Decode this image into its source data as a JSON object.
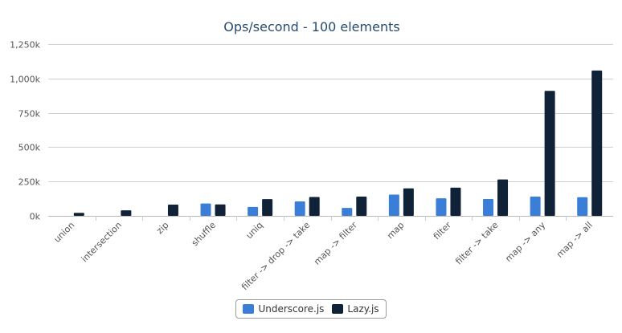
{
  "chart_data": {
    "type": "bar",
    "title": "Ops/second - 100 elements",
    "xlabel": "",
    "ylabel": "",
    "ylim": [
      0,
      1250000
    ],
    "yticks": [
      0,
      250000,
      500000,
      750000,
      1000000,
      1250000
    ],
    "ytick_labels": [
      "0k",
      "250k",
      "500k",
      "750k",
      "1,000k",
      "1,250k"
    ],
    "grid": true,
    "legend_position": "bottom-center",
    "categories": [
      "union",
      "intersection",
      "zip",
      "shuffle",
      "uniq",
      "filter -> drop -> take",
      "map -> filter",
      "map",
      "filter",
      "filter -> take",
      "map -> any",
      "map -> all"
    ],
    "series": [
      {
        "name": "Underscore.js",
        "color": "#3a7ed7",
        "values": [
          0,
          0,
          0,
          90000,
          65000,
          105000,
          58000,
          155000,
          128000,
          123000,
          140000,
          136000
        ]
      },
      {
        "name": "Lazy.js",
        "color": "#0f2238",
        "values": [
          22000,
          40000,
          82000,
          83000,
          122000,
          137000,
          140000,
          200000,
          205000,
          265000,
          910000,
          1058000
        ]
      }
    ]
  }
}
